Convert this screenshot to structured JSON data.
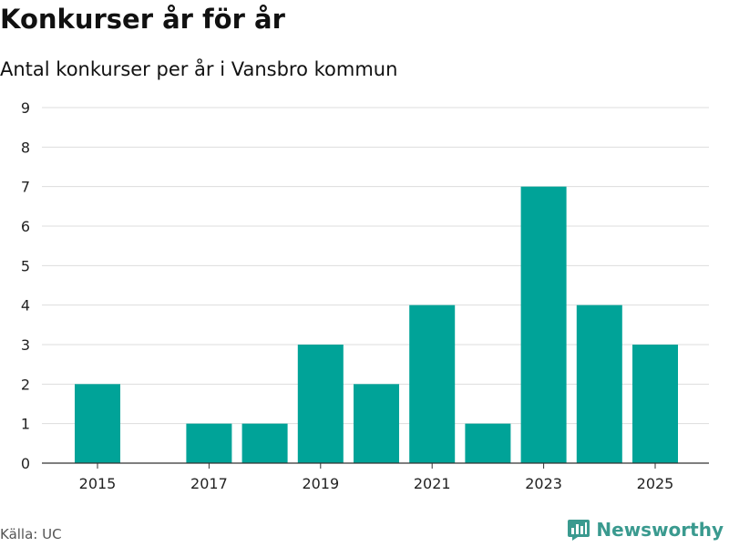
{
  "title": "Konkurser år för år",
  "subtitle": "Antal konkurser per år i Vansbro kommun",
  "source": "Källa: UC",
  "brand": {
    "name": "Newsworthy",
    "icon": "bar-chart-logo-icon",
    "color": "#3a9a8f"
  },
  "chart_data": {
    "type": "bar",
    "x": [
      2015,
      2016,
      2017,
      2018,
      2019,
      2020,
      2021,
      2022,
      2023,
      2024,
      2025
    ],
    "values": [
      2,
      0,
      1,
      1,
      3,
      2,
      4,
      1,
      7,
      4,
      3
    ],
    "x_tick_labels": [
      "2015",
      "2017",
      "2019",
      "2021",
      "2023",
      "2025"
    ],
    "y_ticks": [
      0,
      1,
      2,
      3,
      4,
      5,
      6,
      7,
      8,
      9
    ],
    "ylim": [
      0,
      9
    ],
    "grid": true,
    "bar_color": "#00a398"
  }
}
